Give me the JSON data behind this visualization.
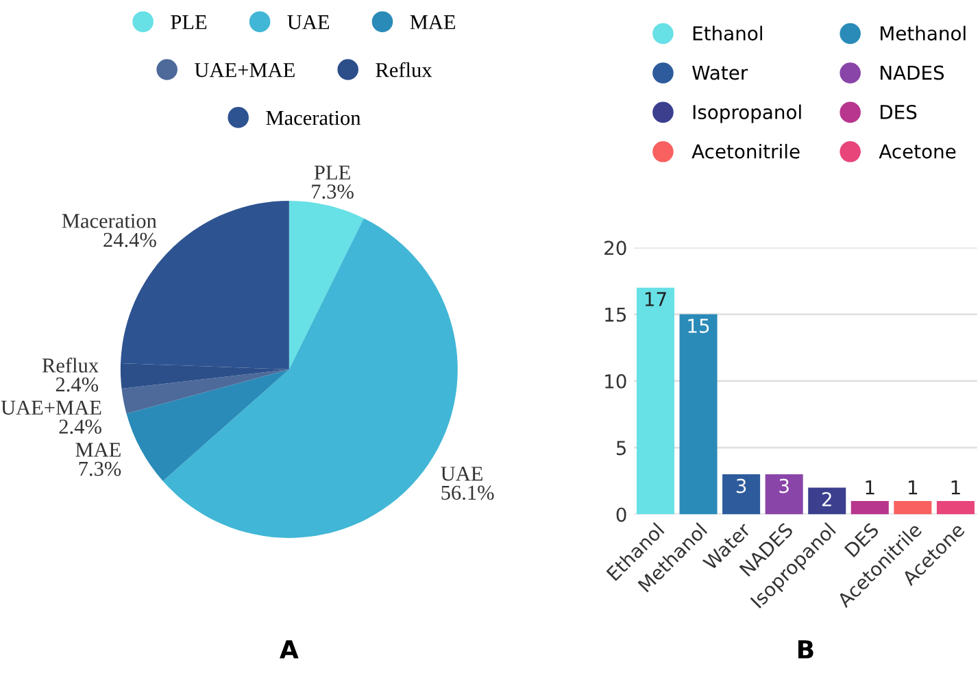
{
  "chart_data": [
    {
      "type": "pie",
      "categories": [
        "PLE",
        "UAE",
        "MAE",
        "UAE+MAE",
        "Reflux",
        "Maceration"
      ],
      "values": [
        7.3,
        56.1,
        7.3,
        2.4,
        2.4,
        24.4
      ],
      "colors": [
        "#67e0e6",
        "#41b6d6",
        "#2a8bb8",
        "#4d6a9a",
        "#2c4f8a",
        "#2e5391"
      ],
      "value_labels": [
        "7.3%",
        "56.1%",
        "7.3%",
        "2.4%",
        "2.4%",
        "24.4%"
      ],
      "legend": "top",
      "annotations": [
        "A"
      ]
    },
    {
      "type": "bar",
      "categories": [
        "Ethanol",
        "Methanol",
        "Water",
        "NADES",
        "Isopropanol",
        "DES",
        "Acetonitrile",
        "Acetone"
      ],
      "series": [
        {
          "name": "Ethanol",
          "color": "#67e0e6",
          "values": [
            17,
            null,
            null,
            null,
            null,
            null,
            null,
            null
          ]
        },
        {
          "name": "Methanol",
          "color": "#2a8bb8",
          "values": [
            null,
            15,
            null,
            null,
            null,
            null,
            null,
            null
          ]
        },
        {
          "name": "Water",
          "color": "#2d5b9c",
          "values": [
            null,
            null,
            3,
            null,
            null,
            null,
            null,
            null
          ]
        },
        {
          "name": "NADES",
          "color": "#8a45a8",
          "values": [
            null,
            null,
            null,
            3,
            null,
            null,
            null,
            null
          ]
        },
        {
          "name": "Isopropanol",
          "color": "#3b3f8e",
          "values": [
            null,
            null,
            null,
            null,
            2,
            null,
            null,
            null
          ]
        },
        {
          "name": "DES",
          "color": "#b8368e",
          "values": [
            null,
            null,
            null,
            null,
            null,
            1,
            null,
            null
          ]
        },
        {
          "name": "Acetonitrile",
          "color": "#f96060",
          "values": [
            null,
            null,
            null,
            null,
            null,
            null,
            1,
            null
          ]
        },
        {
          "name": "Acetone",
          "color": "#e8457a",
          "values": [
            null,
            null,
            null,
            null,
            null,
            null,
            null,
            1
          ]
        }
      ],
      "ylim": [
        0,
        20
      ],
      "yticks": [
        0,
        5,
        10,
        15,
        20
      ],
      "grid": "y",
      "data_labels": true,
      "legend": "top",
      "annotations": [
        "B"
      ]
    }
  ]
}
